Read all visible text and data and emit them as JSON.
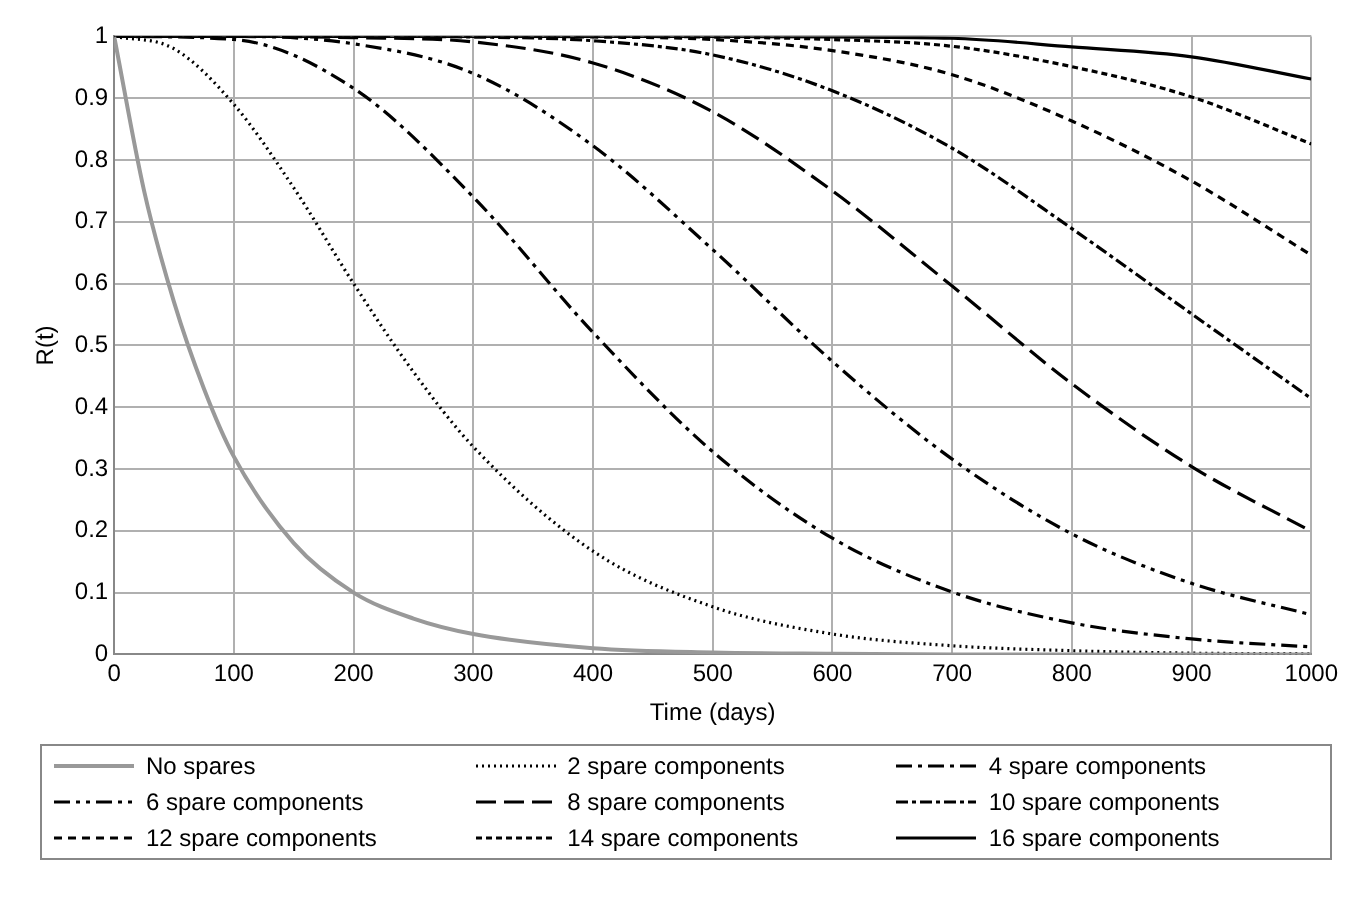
{
  "chart_data": {
    "type": "line",
    "xlabel": "Time (days)",
    "ylabel": "R(t)",
    "xlim": [
      0,
      1000
    ],
    "ylim": [
      0,
      1
    ],
    "xticks": [
      0,
      100,
      200,
      300,
      400,
      500,
      600,
      700,
      800,
      900,
      1000
    ],
    "yticks": [
      0,
      0.1,
      0.2,
      0.3,
      0.4,
      0.5,
      0.6,
      0.7,
      0.8,
      0.9,
      1
    ],
    "grid": true,
    "legend": "bottom",
    "marker": "none",
    "x": [
      0,
      100,
      200,
      300,
      400,
      500,
      600,
      700,
      800,
      900,
      1000
    ],
    "series": [
      {
        "name": "No spares",
        "color": "#999999",
        "line_style": "solid",
        "x": [
          0,
          25,
          50,
          75,
          100,
          150,
          200,
          250,
          300,
          400,
          500,
          600,
          700,
          800,
          900,
          1000
        ],
        "values": [
          1,
          0.75,
          0.57,
          0.43,
          0.32,
          0.18,
          0.1,
          0.058,
          0.033,
          0.01,
          0.003,
          0.001,
          0,
          0,
          0,
          0
        ]
      },
      {
        "name": "2 spare components",
        "color": "#000000",
        "line_style": "dotted",
        "x": [
          0,
          50,
          100,
          150,
          200,
          250,
          300,
          400,
          500,
          600,
          700,
          800,
          900,
          1000
        ],
        "values": [
          1,
          0.98,
          0.89,
          0.755,
          0.6,
          0.457,
          0.336,
          0.167,
          0.077,
          0.033,
          0.014,
          0.006,
          0.002,
          0.001
        ]
      },
      {
        "name": "4 spare components",
        "color": "#000000",
        "line_style": "dashed",
        "values": [
          1,
          0.995,
          0.916,
          0.74,
          0.521,
          0.328,
          0.188,
          0.101,
          0.051,
          0.025,
          0.012
        ]
      },
      {
        "name": "6 spare components",
        "color": "#000000",
        "line_style": "dashed",
        "values": [
          1,
          1,
          0.988,
          0.94,
          0.823,
          0.655,
          0.474,
          0.316,
          0.195,
          0.115,
          0.064
        ]
      },
      {
        "name": "8 spare components",
        "color": "#000000",
        "line_style": "dashed",
        "values": [
          1,
          1,
          0.998,
          0.991,
          0.957,
          0.878,
          0.75,
          0.596,
          0.438,
          0.304,
          0.199
        ]
      },
      {
        "name": "10 spare components",
        "color": "#000000",
        "line_style": "dashed",
        "values": [
          1,
          1,
          1,
          0.999,
          0.993,
          0.97,
          0.912,
          0.819,
          0.689,
          0.551,
          0.414
        ]
      },
      {
        "name": "12 spare components",
        "color": "#000000",
        "line_style": "dashed",
        "values": [
          1,
          1,
          1,
          1,
          0.999,
          0.995,
          0.977,
          0.938,
          0.863,
          0.766,
          0.646
        ]
      },
      {
        "name": "14 spare components",
        "color": "#000000",
        "line_style": "dashed",
        "values": [
          1,
          1,
          1,
          1,
          1,
          0.999,
          0.995,
          0.984,
          0.951,
          0.902,
          0.826
        ]
      },
      {
        "name": "16 spare components",
        "color": "#000000",
        "line_style": "solid",
        "values": [
          1,
          1,
          1,
          1,
          1,
          1,
          0.999,
          0.997,
          0.983,
          0.967,
          0.931
        ]
      }
    ]
  }
}
